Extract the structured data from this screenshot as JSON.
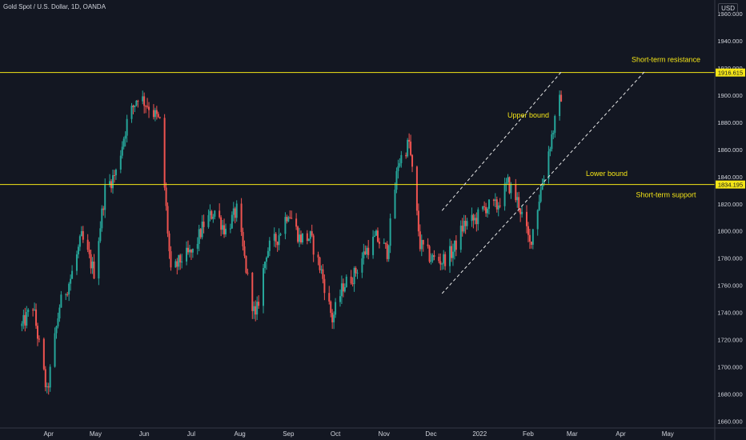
{
  "header": {
    "title": "Gold Spot / U.S. Dollar, 1D, OANDA",
    "currency": "USD"
  },
  "colors": {
    "background": "#131722",
    "up": "#26a69a",
    "down": "#ef5350",
    "levels": "#f5e617",
    "text": "#d1d4dc",
    "annotation": "#f5e617",
    "axis_line": "#363a45"
  },
  "chart_data": {
    "type": "candlestick",
    "title": "Gold Spot / U.S. Dollar, 1D, OANDA",
    "x_tick_labels": [
      "Apr",
      "May",
      "Jun",
      "Jul",
      "Aug",
      "Sep",
      "Oct",
      "Nov",
      "Dec",
      "2022",
      "Feb",
      "Mar",
      "Apr",
      "May"
    ],
    "y_tick_labels": [
      1660,
      1680,
      1700,
      1720,
      1740,
      1760,
      1780,
      1800,
      1820,
      1840,
      1860,
      1880,
      1900,
      1920,
      1940,
      1960
    ],
    "ylim": [
      1655,
      1970
    ],
    "price_axis_labels": [
      "1916.615",
      "1834.195"
    ],
    "levels": [
      {
        "label": "Short-term resistance",
        "value": 1916.615
      },
      {
        "label": "Short-term support",
        "value": 1834.195
      }
    ],
    "channel": [
      {
        "label": "Upper bound",
        "from": {
          "date": "2021-12-08",
          "price": 1815
        },
        "to": {
          "date": "2022-02-22",
          "price": 1917
        }
      },
      {
        "label": "Lower bound",
        "from": {
          "date": "2021-12-08",
          "price": 1754
        },
        "to": {
          "date": "2022-04-16",
          "price": 1917
        }
      }
    ],
    "series": [
      {
        "path": [
          [
            "2021-03-15",
            1730
          ],
          [
            "2021-03-22",
            1745
          ],
          [
            "2021-03-31",
            1680
          ],
          [
            "2021-04-08",
            1745
          ],
          [
            "2021-04-15",
            1765
          ],
          [
            "2021-04-22",
            1795
          ],
          [
            "2021-04-30",
            1770
          ],
          [
            "2021-05-07",
            1830
          ],
          [
            "2021-05-14",
            1843
          ],
          [
            "2021-05-21",
            1880
          ],
          [
            "2021-05-28",
            1900
          ],
          [
            "2021-06-04",
            1892
          ],
          [
            "2021-06-11",
            1880
          ],
          [
            "2021-06-18",
            1768
          ],
          [
            "2021-06-25",
            1780
          ],
          [
            "2021-07-02",
            1784
          ],
          [
            "2021-07-09",
            1805
          ],
          [
            "2021-07-16",
            1815
          ],
          [
            "2021-07-23",
            1800
          ],
          [
            "2021-07-30",
            1815
          ],
          [
            "2021-08-06",
            1765
          ],
          [
            "2021-08-11",
            1735
          ],
          [
            "2021-08-18",
            1785
          ],
          [
            "2021-08-25",
            1795
          ],
          [
            "2021-09-01",
            1815
          ],
          [
            "2021-09-08",
            1795
          ],
          [
            "2021-09-15",
            1795
          ],
          [
            "2021-09-22",
            1770
          ],
          [
            "2021-09-29",
            1735
          ],
          [
            "2021-10-06",
            1760
          ],
          [
            "2021-10-13",
            1768
          ],
          [
            "2021-10-20",
            1785
          ],
          [
            "2021-10-27",
            1795
          ],
          [
            "2021-11-03",
            1785
          ],
          [
            "2021-11-10",
            1850
          ],
          [
            "2021-11-17",
            1865
          ],
          [
            "2021-11-24",
            1790
          ],
          [
            "2021-12-01",
            1780
          ],
          [
            "2021-12-08",
            1778
          ],
          [
            "2021-12-15",
            1785
          ],
          [
            "2021-12-22",
            1805
          ],
          [
            "2021-12-29",
            1808
          ],
          [
            "2022-01-05",
            1818
          ],
          [
            "2022-01-12",
            1818
          ],
          [
            "2022-01-19",
            1835
          ],
          [
            "2022-01-26",
            1820
          ],
          [
            "2022-02-02",
            1790
          ],
          [
            "2022-02-09",
            1830
          ],
          [
            "2022-02-16",
            1870
          ],
          [
            "2022-02-23",
            1905
          ]
        ]
      }
    ]
  }
}
